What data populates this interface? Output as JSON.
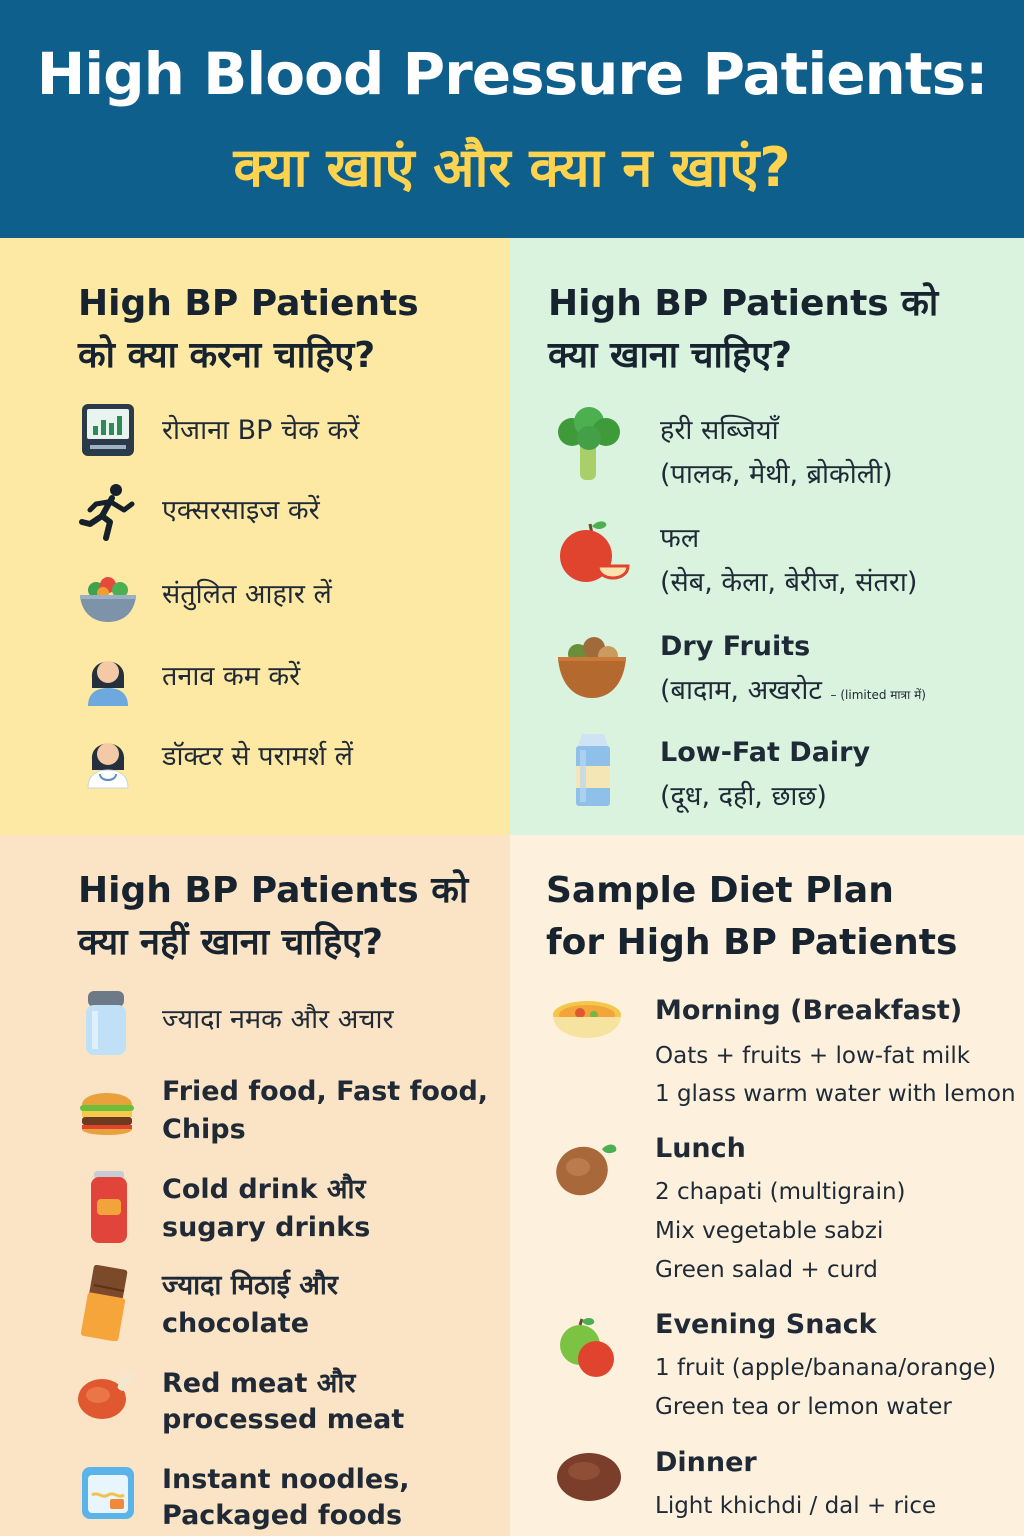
{
  "header": {
    "title_line1": "High Blood Pressure Patients:",
    "title_line2": "क्या खाएं और क्या न खाएं?"
  },
  "dos": {
    "title_line1": "High BP Patients",
    "title_line2": "को क्या करना चाहिए?",
    "items": [
      {
        "icon": "bp-monitor-icon",
        "text": "रोजाना BP चेक करें"
      },
      {
        "icon": "running-person-icon",
        "text": "एक्सरसाइज करें"
      },
      {
        "icon": "salad-bowl-icon",
        "text": "संतुलित आहार लें"
      },
      {
        "icon": "woman-icon",
        "text": "तनाव कम करें"
      },
      {
        "icon": "doctor-icon",
        "text": "डॉक्टर से परामर्श लें"
      }
    ]
  },
  "eat": {
    "title_line1": "High BP Patients को",
    "title_line2": "क्या खाना चाहिए?",
    "items": [
      {
        "icon": "broccoli-icon",
        "line1": "हरी सब्जियाँ",
        "line2": "(पालक, मेथी, ब्रोकोली)"
      },
      {
        "icon": "apple-icon",
        "line1": "फल",
        "line2": "(सेब, केला, बेरीज, संतरा)"
      },
      {
        "icon": "nut-bowl-icon",
        "line1": "Dry Fruits",
        "line2": "(बादाम, अखरोट",
        "note": "– (limited मात्रा में)"
      },
      {
        "icon": "milk-carton-icon",
        "line1": "Low-Fat Dairy",
        "line2": "(दूध, दही, छाछ)"
      }
    ]
  },
  "avoid": {
    "title_line1": "High BP Patients को",
    "title_line2": "क्या नहीं खाना चाहिए?",
    "items": [
      {
        "icon": "salt-shaker-icon",
        "line1": "ज्यादा नमक और अचार",
        "line2": ""
      },
      {
        "icon": "burger-icon",
        "line1": "Fried food, Fast food,",
        "line2": "Chips"
      },
      {
        "icon": "soda-can-icon",
        "line1": "Cold drink और",
        "line2": "sugary drinks"
      },
      {
        "icon": "chocolate-icon",
        "line1": "ज्यादा मिठाई और",
        "line2": "chocolate"
      },
      {
        "icon": "meat-icon",
        "line1": "Red meat और",
        "line2": "processed meat"
      },
      {
        "icon": "noodles-icon",
        "line1": "Instant noodles,",
        "line2": "Packaged foods"
      }
    ]
  },
  "plan": {
    "title_line1": "Sample Diet Plan",
    "title_line2": "for High BP Patients",
    "meals": [
      {
        "icon": "breakfast-bowl-icon",
        "name": "Morning (Breakfast)",
        "lines": [
          "Oats + fruits + low-fat milk",
          "1 glass warm water with lemon"
        ]
      },
      {
        "icon": "chapati-icon",
        "name": "Lunch",
        "lines": [
          "2 chapati (multigrain)",
          "Mix vegetable sabzi",
          "Green salad + curd"
        ]
      },
      {
        "icon": "fruits-icon",
        "name": "Evening Snack",
        "lines": [
          "1 fruit (apple/banana/orange)",
          "Green tea or lemon water"
        ]
      },
      {
        "icon": "dinner-icon",
        "name": "Dinner",
        "lines": [
          "Light khichdi / dal + rice"
        ]
      }
    ]
  }
}
